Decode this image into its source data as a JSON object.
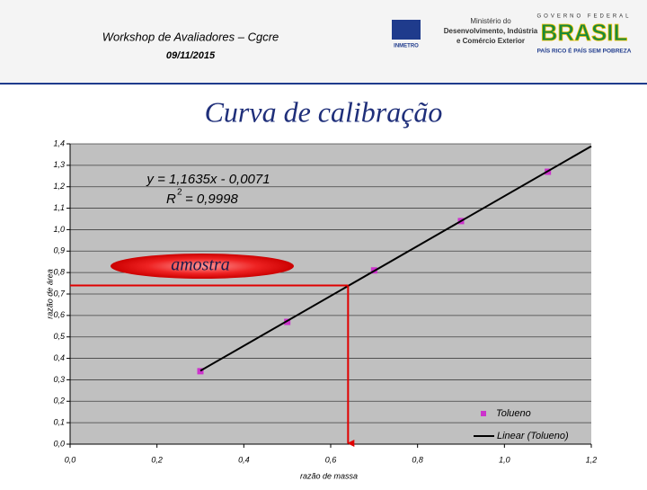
{
  "header": {
    "event": "Workshop de Avaliadores – Cgcre",
    "date": "09/11/2015",
    "inmetro": "INMETRO",
    "ministry": [
      "Ministério do",
      "Desenvolvimento, Indústria",
      "e Comércio Exterior"
    ],
    "government": "GOVERNO FEDERAL",
    "country": "BRASIL",
    "slogan": "PAÍS RICO É PAÍS SEM POBREZA"
  },
  "chart_data": {
    "type": "scatter",
    "title": "Curva de calibração",
    "x_label": "razão de massa",
    "y_label": "razão de área",
    "equation": "y = 1,1635x - 0,0071",
    "r2_symbol": "R",
    "r2_power": "2",
    "r2_value": "= 0,9998",
    "annotation": "amostra",
    "sample": {
      "x": 0.64,
      "y": 0.74
    },
    "xlim": [
      0,
      1.2
    ],
    "ylim": [
      0,
      1.4
    ],
    "xticks": [
      {
        "value": 0,
        "label": "0,0"
      },
      {
        "value": 0.2,
        "label": "0,2"
      },
      {
        "value": 0.4,
        "label": "0,4"
      },
      {
        "value": 0.6,
        "label": "0,6"
      },
      {
        "value": 0.8,
        "label": "0,8"
      },
      {
        "value": 1.0,
        "label": "1,0"
      },
      {
        "value": 1.2,
        "label": "1,2"
      }
    ],
    "yticks": [
      {
        "value": 0,
        "label": "0,0"
      },
      {
        "value": 0.1,
        "label": "0,1"
      },
      {
        "value": 0.2,
        "label": "0,2"
      },
      {
        "value": 0.3,
        "label": "0,3"
      },
      {
        "value": 0.4,
        "label": "0,4"
      },
      {
        "value": 0.5,
        "label": "0,5"
      },
      {
        "value": 0.6,
        "label": "0,6"
      },
      {
        "value": 0.7,
        "label": "0,7"
      },
      {
        "value": 0.8,
        "label": "0,8"
      },
      {
        "value": 0.9,
        "label": "0,9"
      },
      {
        "value": 1.0,
        "label": "1,0"
      },
      {
        "value": 1.1,
        "label": "1,1"
      },
      {
        "value": 1.2,
        "label": "1,2"
      },
      {
        "value": 1.3,
        "label": "1,3"
      },
      {
        "value": 1.4,
        "label": "1,4"
      }
    ],
    "grid": true,
    "series": [
      {
        "name": "Tolueno",
        "type": "scatter",
        "color": "#cc33cc",
        "x": [
          0.3,
          0.5,
          0.7,
          0.9,
          1.1
        ],
        "values": [
          0.34,
          0.57,
          0.81,
          1.04,
          1.27
        ]
      },
      {
        "name": "Linear (Tolueno)",
        "type": "line",
        "color": "#000000",
        "x": [
          0.3,
          1.2
        ],
        "values": [
          0.342,
          1.389
        ]
      }
    ]
  }
}
